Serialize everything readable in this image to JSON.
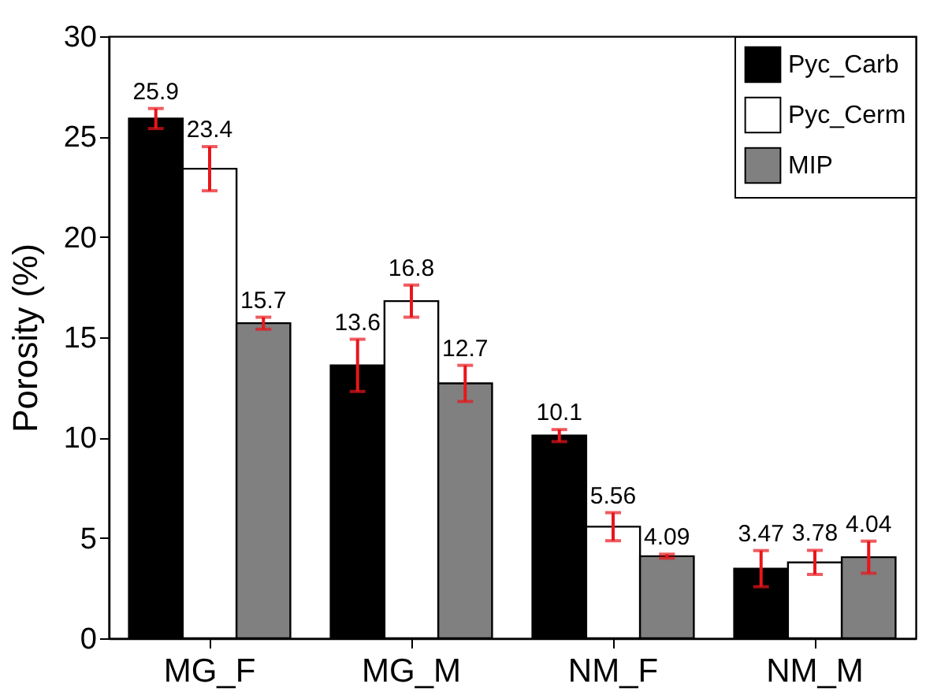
{
  "chart_data": {
    "type": "bar",
    "ylabel": "Porosity (%)",
    "categories": [
      "MG_F",
      "MG_M",
      "NM_F",
      "NM_M"
    ],
    "series": [
      {
        "name": "Pyc_Carb",
        "color": "#000000",
        "values": [
          25.9,
          13.6,
          10.1,
          3.47
        ],
        "errors": [
          0.5,
          1.3,
          0.3,
          0.9
        ]
      },
      {
        "name": "Pyc_Cerm",
        "color": "#ffffff",
        "values": [
          23.4,
          16.8,
          5.56,
          3.78
        ],
        "errors": [
          1.1,
          0.8,
          0.7,
          0.6
        ]
      },
      {
        "name": "MIP",
        "color": "#808080",
        "values": [
          15.7,
          12.7,
          4.09,
          4.04
        ],
        "errors": [
          0.3,
          0.9,
          0.1,
          0.8
        ]
      }
    ],
    "ylim": [
      0,
      30
    ],
    "yticks": [
      0,
      5,
      10,
      15,
      20,
      25,
      30
    ],
    "data_labels": true,
    "legend": "top right",
    "grid": false
  }
}
